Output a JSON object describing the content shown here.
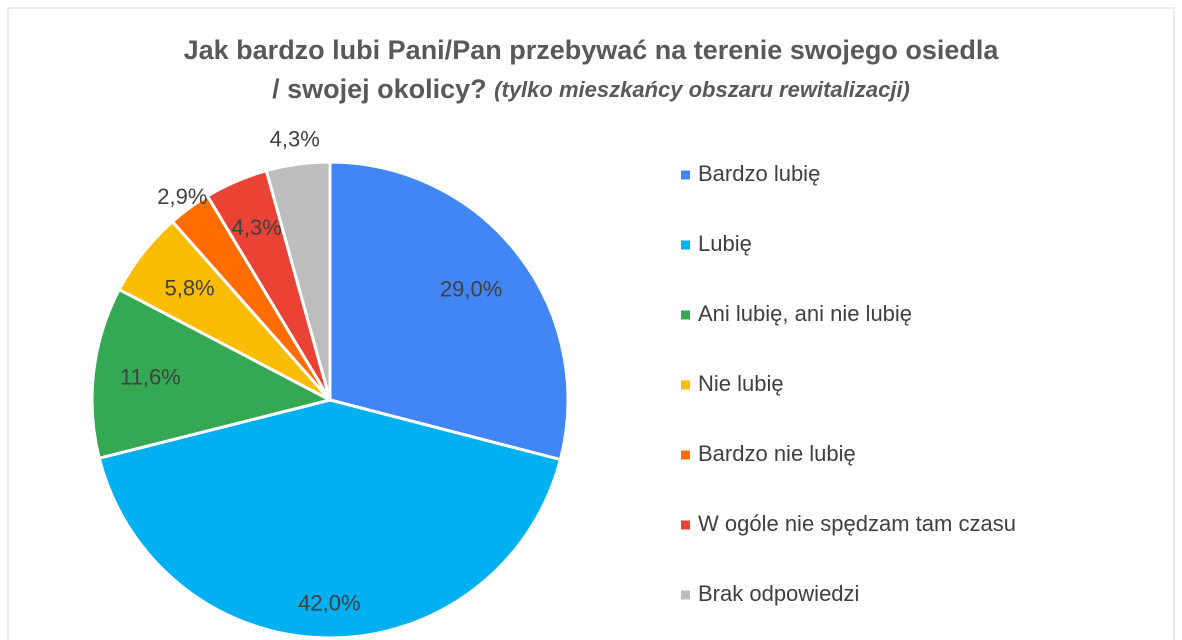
{
  "chart_data": {
    "type": "pie",
    "title": "Jak bardzo lubi Pani/Pan przebywać na terenie swojego osiedla / swojej okolicy?",
    "subtitle": "(tylko mieszkańcy obszaru rewitalizacji)",
    "categories": [
      "Bardzo lubię",
      "Lubię",
      "Ani lubię, ani nie lubię",
      "Nie lubię",
      "Bardzo nie lubię",
      "W ogóle nie spędzam tam czasu",
      "Brak odpowiedzi"
    ],
    "values": [
      29.0,
      42.0,
      11.6,
      5.8,
      2.9,
      4.3,
      4.3
    ],
    "value_labels": [
      "29,0%",
      "42,0%",
      "11,6%",
      "5,8%",
      "2,9%",
      "4,3%",
      "4,3%"
    ],
    "colors": [
      "#4285f4",
      "#00b0f0",
      "#34a853",
      "#fbbc04",
      "#ff6d01",
      "#ea4335",
      "#bdbdbd"
    ],
    "legend": "right"
  }
}
